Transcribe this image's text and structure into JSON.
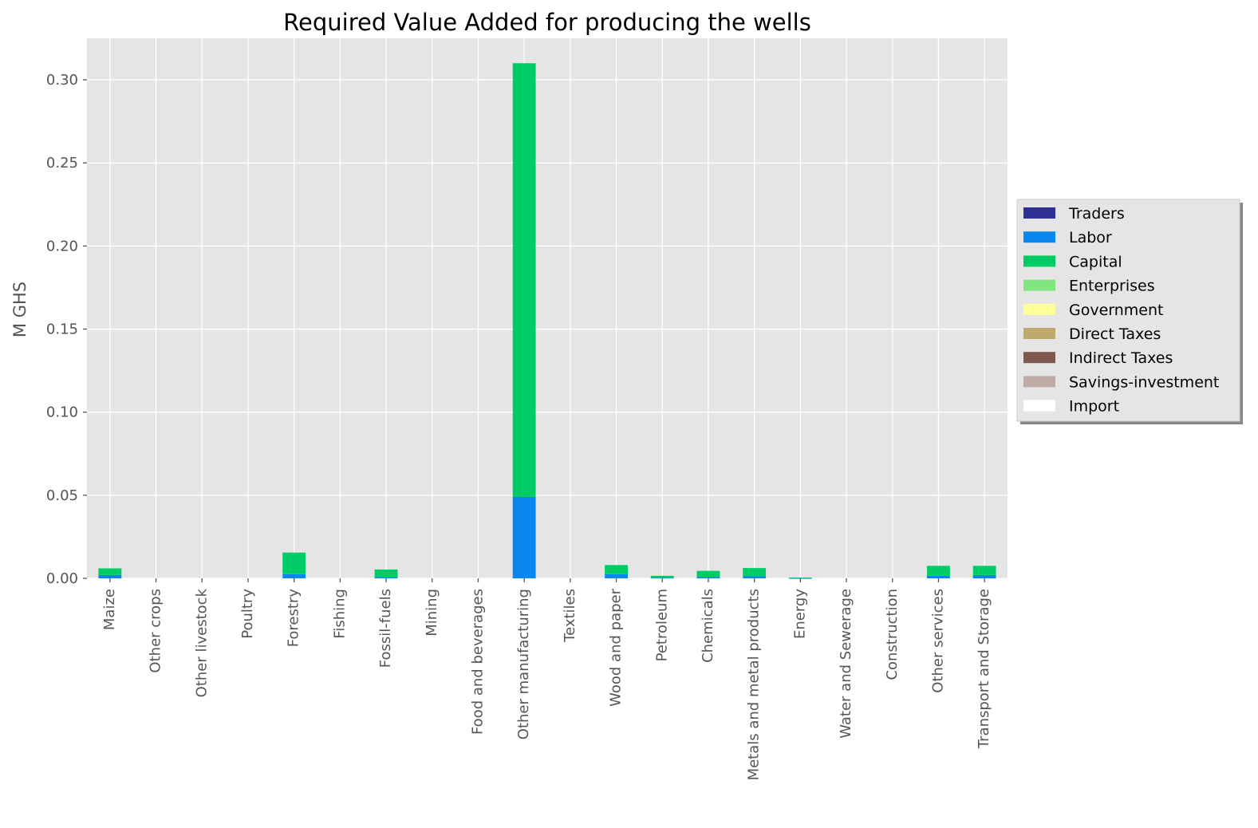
{
  "chart_data": {
    "type": "bar",
    "stacked": true,
    "title": "Required Value Added for producing the wells",
    "xlabel": "",
    "ylabel": "M GHS",
    "ylim": [
      0,
      0.325
    ],
    "yticks": [
      "0.00",
      "0.05",
      "0.10",
      "0.15",
      "0.20",
      "0.25",
      "0.30"
    ],
    "ytick_values": [
      0,
      0.05,
      0.1,
      0.15,
      0.2,
      0.25,
      0.3
    ],
    "grid": true,
    "legend_position": "right",
    "categories": [
      "Maize",
      "Other crops",
      "Other livestock",
      "Poultry",
      "Forestry",
      "Fishing",
      "Fossil-fuels",
      "Mining",
      "Food and beverages",
      "Other manufacturing",
      "Textiles",
      "Wood and paper",
      "Petroleum",
      "Chemicals",
      "Metals and metal products",
      "Energy",
      "Water and Sewerage",
      "Construction",
      "Other services",
      "Transport and Storage"
    ],
    "series": [
      {
        "name": "Traders",
        "color": "#2e3192",
        "values": [
          0,
          0,
          0,
          0,
          0,
          0,
          0,
          0,
          0,
          0,
          0,
          0,
          0,
          0,
          0,
          0,
          0,
          0,
          0,
          0
        ]
      },
      {
        "name": "Labor",
        "color": "#0a87ee",
        "values": [
          0.002,
          0,
          0,
          0,
          0.0025,
          0,
          0.0008,
          0,
          0,
          0.049,
          0,
          0.0025,
          0.0003,
          0.0007,
          0.0012,
          0.0001,
          0,
          0,
          0.0015,
          0.002
        ]
      },
      {
        "name": "Capital",
        "color": "#00cc66",
        "values": [
          0.004,
          0,
          0,
          0,
          0.013,
          0,
          0.0045,
          0,
          0,
          0.261,
          0,
          0.0055,
          0.0012,
          0.0038,
          0.005,
          0.0004,
          0,
          0,
          0.006,
          0.0055
        ]
      },
      {
        "name": "Enterprises",
        "color": "#80e680",
        "values": [
          0,
          0,
          0,
          0,
          0,
          0,
          0,
          0,
          0,
          0,
          0,
          0,
          0,
          0,
          0,
          0,
          0,
          0,
          0,
          0
        ]
      },
      {
        "name": "Government",
        "color": "#ffff99",
        "values": [
          0,
          0,
          0,
          0,
          0,
          0,
          0,
          0,
          0,
          0,
          0,
          0,
          0,
          0,
          0,
          0,
          0,
          0,
          0,
          0
        ]
      },
      {
        "name": "Direct Taxes",
        "color": "#bfaa6e",
        "values": [
          0,
          0,
          0,
          0,
          0,
          0,
          0,
          0,
          0,
          0,
          0,
          0,
          0,
          0,
          0,
          0,
          0,
          0,
          0,
          0
        ]
      },
      {
        "name": "Indirect Taxes",
        "color": "#80584d",
        "values": [
          0,
          0,
          0,
          0,
          0,
          0,
          0,
          0,
          0,
          0,
          0,
          0,
          0,
          0,
          0,
          0,
          0,
          0,
          0,
          0
        ]
      },
      {
        "name": "Savings-investment",
        "color": "#c0aaa6",
        "values": [
          0,
          0,
          0,
          0,
          0,
          0,
          0,
          0,
          0,
          0,
          0,
          0,
          0,
          0,
          0,
          0,
          0,
          0,
          0,
          0
        ]
      },
      {
        "name": "Import",
        "color": "#ffffff",
        "values": [
          0,
          0,
          0,
          0,
          0,
          0,
          0,
          0,
          0,
          0,
          0,
          0,
          0,
          0,
          0,
          0,
          0,
          0,
          0,
          0
        ]
      }
    ]
  },
  "colors": {
    "plot_background": "#e5e5e5",
    "grid": "#ffffff",
    "tick_text": "#555555",
    "legend_background": "#e5e5e5",
    "legend_border": "#cccccc"
  }
}
